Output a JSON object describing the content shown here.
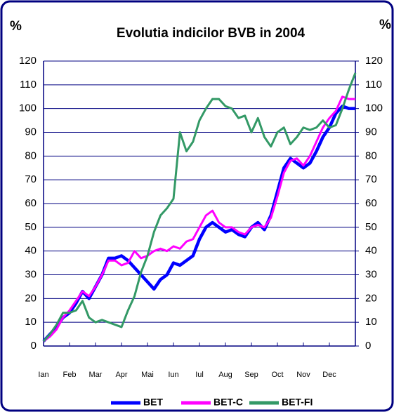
{
  "chart_data": {
    "type": "line",
    "title": "Evolutia indicilor BVB in 2004",
    "y_label": "%",
    "y2_label": "%",
    "categories": [
      "Ian",
      null,
      null,
      null,
      "Feb",
      null,
      null,
      null,
      "Mar",
      null,
      null,
      null,
      "Apr",
      null,
      null,
      null,
      "Mai",
      null,
      null,
      null,
      "Iun",
      null,
      null,
      null,
      "Iul",
      null,
      null,
      null,
      "Aug",
      null,
      null,
      null,
      "Sep",
      null,
      null,
      null,
      "Oct",
      null,
      null,
      null,
      "Nov",
      null,
      null,
      null,
      "Dec",
      null,
      null,
      null,
      null
    ],
    "series": [
      {
        "name": "BET",
        "color": "#0000ff",
        "values": [
          2,
          5,
          8,
          12,
          14,
          18,
          23,
          20,
          25,
          30,
          37,
          37,
          38,
          36,
          33,
          30,
          27,
          24,
          28,
          30,
          35,
          34,
          36,
          38,
          45,
          50,
          52,
          50,
          48,
          49,
          47,
          46,
          50,
          52,
          49,
          55,
          65,
          75,
          79,
          77,
          75,
          77,
          82,
          88,
          92,
          98,
          101,
          100,
          100
        ]
      },
      {
        "name": "BET-C",
        "color": "#ff00ff",
        "values": [
          2,
          4,
          7,
          12,
          15,
          19,
          23,
          21,
          25,
          30,
          36,
          36,
          34,
          35,
          40,
          37,
          38,
          40,
          41,
          40,
          42,
          41,
          44,
          45,
          50,
          55,
          57,
          52,
          50,
          50,
          48,
          47,
          50,
          51,
          50,
          54,
          63,
          73,
          78,
          79,
          76,
          80,
          86,
          92,
          96,
          99,
          105,
          104,
          104
        ]
      },
      {
        "name": "BET-FI",
        "color": "#339966",
        "values": [
          2,
          5,
          9,
          14,
          14,
          15,
          19,
          12,
          10,
          11,
          10,
          9,
          8,
          15,
          21,
          31,
          38,
          48,
          55,
          58,
          62,
          90,
          82,
          86,
          95,
          100,
          104,
          104,
          101,
          100,
          96,
          97,
          90,
          96,
          88,
          84,
          90,
          92,
          85,
          88,
          92,
          91,
          92,
          95,
          92,
          93,
          100,
          108,
          115
        ]
      }
    ],
    "ylim": [
      0,
      120
    ],
    "yticks": [
      0,
      10,
      20,
      30,
      40,
      50,
      60,
      70,
      80,
      90,
      100,
      110,
      120
    ],
    "y2lim": [
      0,
      120
    ],
    "y2ticks": [
      0,
      10,
      20,
      30,
      40,
      50,
      60,
      70,
      80,
      90,
      100,
      110,
      120
    ],
    "grid": true,
    "legend": "bottom"
  }
}
